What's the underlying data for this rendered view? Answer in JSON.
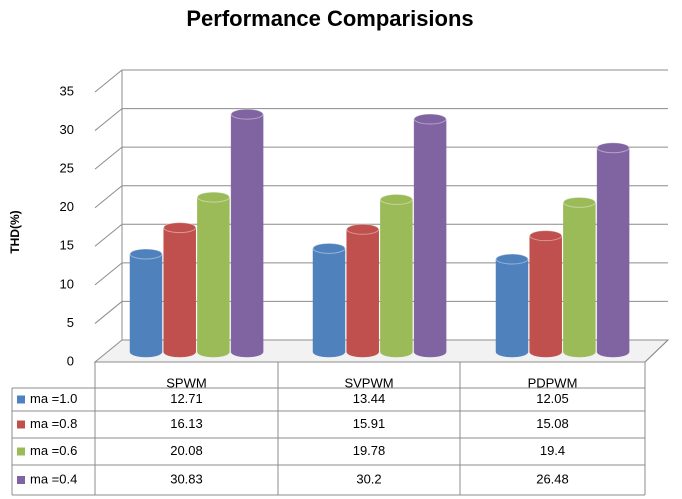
{
  "chart_data": {
    "type": "bar",
    "title": "Performance Comparisions",
    "y_label": "THD(%)",
    "categories": [
      "SPWM",
      "SVPWM",
      "PDPWM"
    ],
    "series": [
      {
        "name": "ma =1.0",
        "color": "#4f81bd",
        "values": [
          12.71,
          13.44,
          12.05
        ]
      },
      {
        "name": "ma =0.8",
        "color": "#c0504d",
        "values": [
          16.13,
          15.91,
          15.08
        ]
      },
      {
        "name": "ma =0.6",
        "color": "#9bbb59",
        "values": [
          20.08,
          19.78,
          19.4
        ]
      },
      {
        "name": "ma =0.4",
        "color": "#8064a2",
        "values": [
          30.83,
          30.2,
          26.48
        ]
      }
    ],
    "ylim": [
      0,
      35
    ],
    "yticks": [
      0,
      5,
      10,
      15,
      20,
      25,
      30,
      35
    ],
    "grid": true
  }
}
